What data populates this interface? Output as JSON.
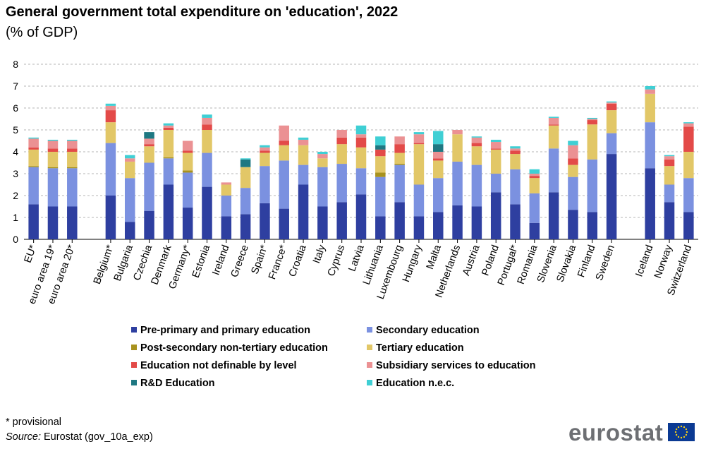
{
  "title": "General government total expenditure on 'education', 2022",
  "subtitle": "(% of GDP)",
  "footnote": "* provisional",
  "source_label": "Source:",
  "source_text": " Eurostat (gov_10a_exp)",
  "logo_text": "eurostat",
  "chart_data": {
    "type": "bar",
    "stacked": true,
    "title": "General government total expenditure on 'education', 2022",
    "ylabel": "% of GDP",
    "ylim": [
      0,
      8
    ],
    "yticks": [
      0,
      1,
      2,
      3,
      4,
      5,
      6,
      7,
      8
    ],
    "grid": true,
    "legend_position": "bottom",
    "categories": [
      "EU*",
      "euro area 19*",
      "euro area 20*",
      "",
      "Belgium*",
      "Bulgaria",
      "Czechia",
      "Denmark",
      "Germany*",
      "Estonia",
      "Ireland",
      "Greece",
      "Spain*",
      "France*",
      "Croatia",
      "Italy",
      "Cyprus",
      "Latvia",
      "Lithuania",
      "Luxembourg",
      "Hungary",
      "Malta",
      "Netherlands",
      "Austria",
      "Poland",
      "Portugal*",
      "Romania",
      "Slovenia",
      "Slovakia",
      "Finland",
      "Sweden",
      "",
      "Iceland",
      "Norway",
      "Switzerland"
    ],
    "series": [
      {
        "name": "Pre-primary and primary education",
        "color": "#2e3fa0",
        "values": [
          1.6,
          1.5,
          1.5,
          0,
          2.0,
          0.8,
          1.3,
          2.5,
          1.45,
          2.4,
          1.05,
          1.15,
          1.65,
          1.4,
          2.5,
          1.5,
          1.7,
          2.05,
          1.05,
          1.7,
          1.05,
          1.25,
          1.55,
          1.5,
          2.15,
          1.6,
          0.75,
          2.15,
          1.35,
          1.25,
          3.9,
          0,
          3.25,
          1.7,
          1.25
        ]
      },
      {
        "name": "Secondary education",
        "color": "#7b91e0",
        "values": [
          1.7,
          1.75,
          1.75,
          0,
          2.4,
          2.0,
          2.2,
          1.2,
          1.6,
          1.55,
          0.95,
          1.2,
          1.7,
          2.2,
          0.9,
          1.8,
          1.75,
          1.2,
          1.8,
          1.7,
          1.45,
          1.55,
          2.0,
          1.9,
          0.85,
          1.6,
          1.35,
          2.0,
          1.5,
          2.4,
          0.95,
          0,
          2.1,
          0.8,
          1.55
        ]
      },
      {
        "name": "Post-secondary non-tertiary education",
        "color": "#a8921e",
        "values": [
          0.05,
          0.05,
          0.05,
          0,
          0,
          0,
          0,
          0.05,
          0.1,
          0,
          0,
          0,
          0,
          0,
          0,
          0,
          0,
          0,
          0.2,
          0.05,
          0,
          0,
          0,
          0,
          0,
          0,
          0,
          0,
          0,
          0,
          0,
          0,
          0,
          0,
          0
        ]
      },
      {
        "name": "Tertiary education",
        "color": "#e2c767",
        "values": [
          0.75,
          0.7,
          0.7,
          0,
          0.95,
          0.75,
          0.75,
          1.25,
          0.8,
          1.05,
          0.5,
          0.95,
          0.6,
          0.7,
          0.9,
          0.4,
          0.9,
          0.95,
          0.75,
          0.5,
          1.85,
          0.8,
          1.25,
          0.85,
          1.1,
          0.7,
          0.7,
          1.05,
          0.55,
          1.6,
          1.05,
          0,
          1.3,
          0.85,
          1.2
        ]
      },
      {
        "name": "Education not definable by level",
        "color": "#e34a48",
        "values": [
          0.1,
          0.15,
          0.15,
          0,
          0.55,
          0,
          0.1,
          0.1,
          0.1,
          0.25,
          0,
          0,
          0.1,
          0.2,
          0,
          0,
          0.3,
          0.45,
          0.3,
          0.4,
          0.05,
          0.1,
          0,
          0.15,
          0.05,
          0.15,
          0.1,
          0.05,
          0.3,
          0.2,
          0.3,
          0,
          0,
          0.3,
          1.15
        ]
      },
      {
        "name": "Subsidiary services to education",
        "color": "#eb9193",
        "values": [
          0.4,
          0.35,
          0.35,
          0,
          0.2,
          0.15,
          0.25,
          0.1,
          0.45,
          0.3,
          0.1,
          0,
          0.15,
          0.7,
          0.25,
          0.2,
          0.35,
          0.15,
          0,
          0.35,
          0.4,
          0.3,
          0.2,
          0.25,
          0.3,
          0.1,
          0.1,
          0.3,
          0.6,
          0.05,
          0.05,
          0,
          0.2,
          0.15,
          0.15
        ]
      },
      {
        "name": "R&D Education",
        "color": "#1e7882",
        "values": [
          0,
          0,
          0,
          0,
          0,
          0,
          0.3,
          0,
          0,
          0,
          0,
          0.35,
          0,
          0,
          0,
          0,
          0,
          0,
          0.2,
          0,
          0,
          0.35,
          0,
          0,
          0,
          0,
          0,
          0,
          0,
          0,
          0,
          0,
          0,
          0,
          0
        ]
      },
      {
        "name": "Education n.e.c.",
        "color": "#3fcfd4",
        "values": [
          0.05,
          0.05,
          0.05,
          0,
          0.1,
          0.15,
          0,
          0.1,
          0,
          0.15,
          0,
          0.05,
          0.1,
          0,
          0.1,
          0.1,
          0,
          0.4,
          0.4,
          0,
          0.1,
          0.6,
          0,
          0.05,
          0.1,
          0.1,
          0.2,
          0.05,
          0.2,
          0.05,
          0.05,
          0,
          0.15,
          0.05,
          0.05
        ]
      }
    ]
  }
}
